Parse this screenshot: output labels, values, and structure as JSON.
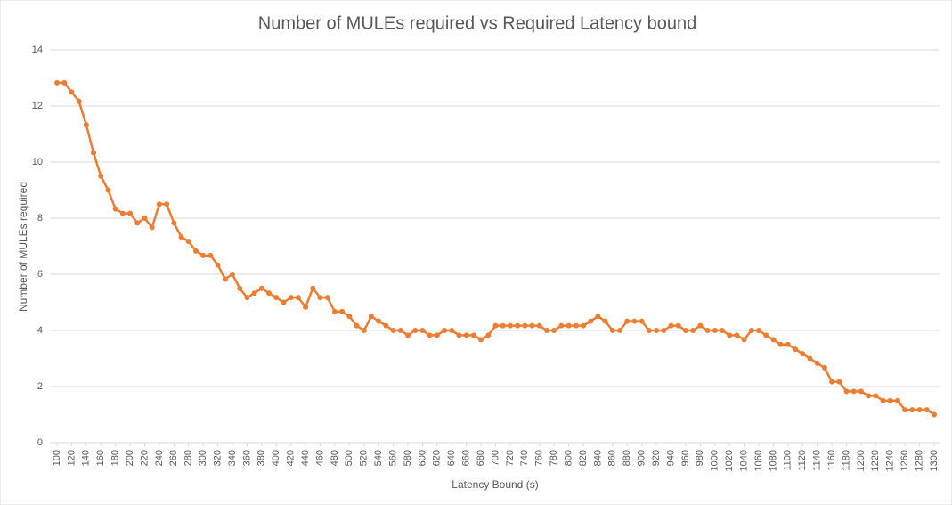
{
  "chart_data": {
    "type": "line",
    "title": "Number of MULEs required vs Required Latency bound",
    "xlabel": "Latency Bound (s)",
    "ylabel": "Number of MULEs required",
    "x": [
      100,
      110,
      120,
      130,
      140,
      150,
      160,
      170,
      180,
      190,
      200,
      210,
      220,
      230,
      240,
      250,
      260,
      270,
      280,
      290,
      300,
      310,
      320,
      330,
      340,
      350,
      360,
      370,
      380,
      390,
      400,
      410,
      420,
      430,
      440,
      450,
      460,
      470,
      480,
      490,
      500,
      510,
      520,
      530,
      540,
      550,
      560,
      570,
      580,
      590,
      600,
      610,
      620,
      630,
      640,
      650,
      660,
      670,
      680,
      690,
      700,
      710,
      720,
      730,
      740,
      750,
      760,
      770,
      780,
      790,
      800,
      810,
      820,
      830,
      840,
      850,
      860,
      870,
      880,
      890,
      900,
      910,
      920,
      930,
      940,
      950,
      960,
      970,
      980,
      990,
      1000,
      1010,
      1020,
      1030,
      1040,
      1050,
      1060,
      1070,
      1080,
      1090,
      1100,
      1110,
      1120,
      1130,
      1140,
      1150,
      1160,
      1170,
      1180,
      1190,
      1200,
      1210,
      1220,
      1230,
      1240,
      1250,
      1260,
      1270,
      1280,
      1290,
      1300
    ],
    "series": [
      {
        "color": "#ed7d31",
        "values": [
          12.83,
          12.83,
          12.5,
          12.17,
          11.33,
          10.33,
          9.5,
          9.0,
          8.33,
          8.17,
          8.17,
          7.83,
          8.0,
          7.67,
          8.5,
          8.5,
          7.83,
          7.33,
          7.17,
          6.83,
          6.67,
          6.67,
          6.33,
          5.83,
          6.0,
          5.5,
          5.17,
          5.33,
          5.5,
          5.33,
          5.17,
          5.0,
          5.17,
          5.17,
          4.83,
          5.5,
          5.17,
          5.17,
          4.67,
          4.67,
          4.5,
          4.17,
          4.0,
          4.5,
          4.33,
          4.17,
          4.0,
          4.0,
          3.83,
          4.0,
          4.0,
          3.83,
          3.83,
          4.0,
          4.0,
          3.83,
          3.83,
          3.83,
          3.67,
          3.83,
          4.17,
          4.17,
          4.17,
          4.17,
          4.17,
          4.17,
          4.17,
          4.0,
          4.0,
          4.17,
          4.17,
          4.17,
          4.17,
          4.33,
          4.5,
          4.33,
          4.0,
          4.0,
          4.33,
          4.33,
          4.33,
          4.0,
          4.0,
          4.0,
          4.17,
          4.17,
          4.0,
          4.0,
          4.17,
          4.0,
          4.0,
          4.0,
          3.83,
          3.83,
          3.67,
          4.0,
          4.0,
          3.83,
          3.67,
          3.5,
          3.5,
          3.33,
          3.17,
          3.0,
          2.83,
          2.67,
          2.17,
          2.17,
          1.83,
          1.83,
          1.83,
          1.67,
          1.67,
          1.5,
          1.5,
          1.5,
          1.17,
          1.17,
          1.17,
          1.17,
          1.0
        ]
      }
    ],
    "xlim": [
      100,
      1300
    ],
    "xticks": [
      100,
      120,
      140,
      160,
      180,
      200,
      220,
      240,
      260,
      280,
      300,
      320,
      340,
      360,
      380,
      400,
      420,
      440,
      460,
      480,
      500,
      520,
      540,
      560,
      580,
      600,
      620,
      640,
      660,
      680,
      700,
      720,
      740,
      760,
      780,
      800,
      820,
      840,
      860,
      880,
      900,
      920,
      940,
      960,
      980,
      1000,
      1020,
      1040,
      1060,
      1080,
      1100,
      1120,
      1140,
      1160,
      1180,
      1200,
      1220,
      1240,
      1260,
      1280,
      1300
    ],
    "ylim": [
      0,
      14
    ],
    "yticks": [
      0,
      2,
      4,
      6,
      8,
      10,
      12,
      14
    ],
    "grid": true
  }
}
